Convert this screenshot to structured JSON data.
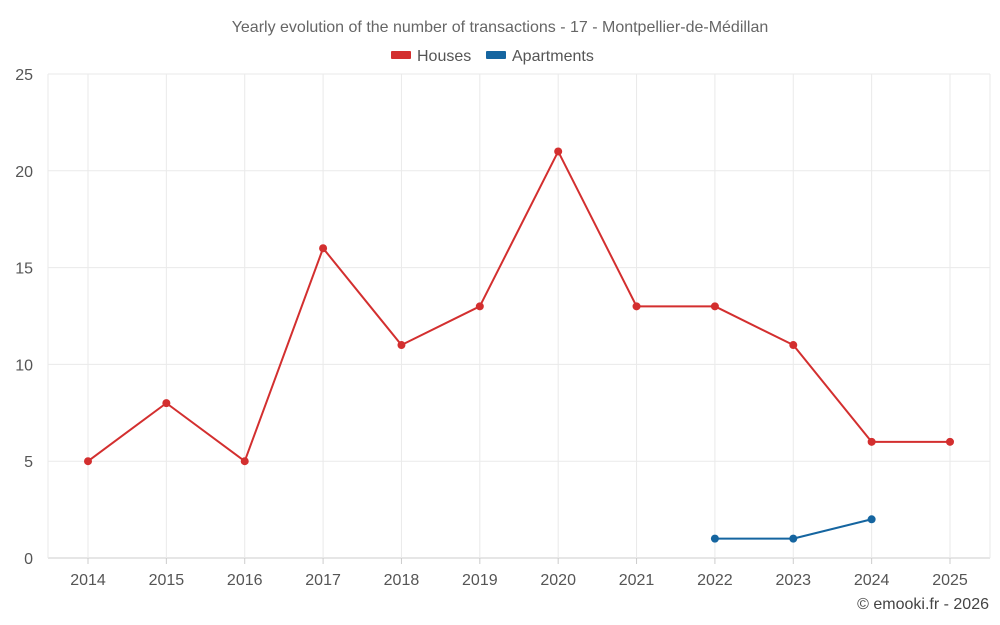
{
  "chart_data": {
    "type": "line",
    "title": "Yearly evolution of the number of transactions - 17 - Montpellier-de-Médillan",
    "xlabel": "",
    "ylabel": "",
    "categories": [
      "2014",
      "2015",
      "2016",
      "2017",
      "2018",
      "2019",
      "2020",
      "2021",
      "2022",
      "2023",
      "2024",
      "2025"
    ],
    "ylim": [
      0,
      25
    ],
    "yticks": [
      0,
      5,
      10,
      15,
      20,
      25
    ],
    "grid": true,
    "legend_position": "top-center",
    "series": [
      {
        "name": "Houses",
        "color": "#d32f2f",
        "values": [
          5,
          8,
          5,
          16,
          11,
          13,
          21,
          13,
          13,
          11,
          6,
          6
        ]
      },
      {
        "name": "Apartments",
        "color": "#1565a0",
        "values": [
          null,
          null,
          null,
          null,
          null,
          null,
          null,
          null,
          1,
          1,
          2,
          null
        ]
      }
    ],
    "credit": "© emooki.fr - 2026"
  }
}
